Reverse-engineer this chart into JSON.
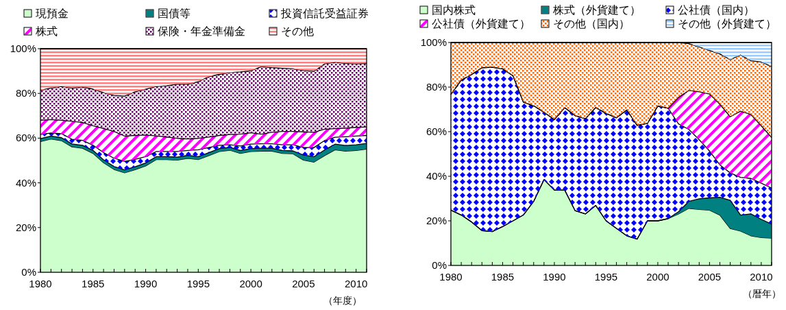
{
  "chart_data": [
    {
      "type": "area",
      "stacked": true,
      "legend": "top",
      "xlabel": "（年度）",
      "x": [
        1980,
        1981,
        1982,
        1983,
        1984,
        1985,
        1986,
        1987,
        1988,
        1989,
        1990,
        1991,
        1992,
        1993,
        1994,
        1995,
        1996,
        1997,
        1998,
        1999,
        2000,
        2001,
        2002,
        2003,
        2004,
        2005,
        2006,
        2007,
        2008,
        2009,
        2010,
        2011
      ],
      "xlim": [
        1980,
        2011
      ],
      "ylim": [
        0,
        100
      ],
      "xticks": [
        1980,
        {
          "value": 1981,
          "label": null
        },
        {
          "value": 1982,
          "label": null
        },
        {
          "value": 1983,
          "label": null
        },
        {
          "value": 1984,
          "label": null
        },
        1985,
        {
          "value": 1986,
          "label": null
        },
        {
          "value": 1987,
          "label": null
        },
        {
          "value": 1988,
          "label": null
        },
        {
          "value": 1989,
          "label": null
        },
        1990,
        {
          "value": 1991,
          "label": null
        },
        {
          "value": 1992,
          "label": null
        },
        {
          "value": 1993,
          "label": null
        },
        {
          "value": 1994,
          "label": null
        },
        1995,
        {
          "value": 1996,
          "label": null
        },
        {
          "value": 1997,
          "label": null
        },
        {
          "value": 1998,
          "label": null
        },
        {
          "value": 1999,
          "label": null
        },
        2000,
        {
          "value": 2001,
          "label": null
        },
        {
          "value": 2002,
          "label": null
        },
        {
          "value": 2003,
          "label": null
        },
        {
          "value": 2004,
          "label": null
        },
        2005,
        {
          "value": 2006,
          "label": null
        },
        {
          "value": 2007,
          "label": null
        },
        {
          "value": 2008,
          "label": null
        },
        {
          "value": 2009,
          "label": null
        },
        2010,
        {
          "value": 2011,
          "label": null
        }
      ],
      "yticks": [
        {
          "value": 0,
          "label": "0%"
        },
        {
          "value": 20,
          "label": "20%"
        },
        {
          "value": 40,
          "label": "40%"
        },
        {
          "value": 60,
          "label": "60%"
        },
        {
          "value": 80,
          "label": "80%"
        },
        {
          "value": 100,
          "label": "100%"
        }
      ],
      "series": [
        {
          "name": "現預金",
          "color": "#ccffcc",
          "values": [
            58.5,
            59.6,
            58.9,
            56.1,
            55.5,
            53.2,
            49,
            46,
            44.5,
            45.9,
            47.6,
            50.4,
            50.4,
            50.2,
            51,
            50.4,
            52.2,
            54,
            54.6,
            53.2,
            54,
            54.2,
            54.2,
            53.2,
            53,
            50.2,
            49.3,
            52.2,
            54.8,
            54.2,
            54.5,
            55.1
          ]
        },
        {
          "name": "国債等",
          "color": "#008080",
          "values": [
            1.3,
            1.3,
            1.3,
            1.3,
            1.3,
            1.3,
            1.3,
            1.3,
            1.3,
            1.3,
            1.3,
            1.3,
            1.3,
            1.3,
            1.3,
            1.3,
            1.3,
            1.3,
            1.3,
            1.3,
            1.3,
            1.3,
            1.3,
            1.3,
            1.3,
            2.2,
            2.4,
            2.5,
            2.5,
            2.5,
            2.5,
            2.5
          ]
        },
        {
          "name": "投資信託受益証券",
          "color": "#0000ff",
          "values": [
            1.8,
            1.4,
            1.8,
            2.1,
            2.2,
            2.3,
            3.2,
            3.7,
            3.8,
            3.3,
            2.8,
            2.3,
            2.3,
            2.5,
            2.2,
            3.1,
            2.3,
            1.5,
            1.1,
            2,
            2,
            2,
            2,
            2.5,
            2.7,
            3.4,
            4.1,
            4.2,
            3.1,
            3.9,
            3.9,
            3.6
          ]
        },
        {
          "name": "株式",
          "color": "#ff00ff",
          "values": [
            6.4,
            6,
            6,
            8,
            8,
            8.7,
            10.8,
            12,
            11.3,
            10.7,
            9.7,
            7,
            6.5,
            5.9,
            5.1,
            5.1,
            4.7,
            4.4,
            4.6,
            5.3,
            5.1,
            4.3,
            5.1,
            6,
            6,
            7,
            6.8,
            5.1,
            3.8,
            3.9,
            3.9,
            3.8
          ]
        },
        {
          "name": "保険・年金準備金",
          "color": "#660066",
          "values": [
            13.4,
            14.1,
            15.1,
            14.9,
            15.9,
            16.4,
            16,
            16.1,
            17.9,
            19.5,
            20.5,
            22.1,
            22.9,
            24.2,
            24.5,
            25.3,
            27,
            27.3,
            27.7,
            27.8,
            27.7,
            30.2,
            28.9,
            28.2,
            28,
            27.4,
            27.3,
            29.2,
            29.8,
            28.9,
            28.4,
            28.4
          ]
        },
        {
          "name": "その他",
          "color": "#ff8080",
          "values": [
            18.6,
            17.6,
            16.9,
            17.6,
            17.1,
            18.1,
            19.7,
            20.9,
            21.2,
            19.3,
            18.1,
            16.9,
            16.6,
            15.9,
            15.9,
            14.8,
            12.5,
            11.5,
            10.7,
            10.4,
            9.9,
            8,
            8.5,
            8.8,
            9,
            9.8,
            10.1,
            6.8,
            6,
            6.6,
            6.8,
            6.6
          ]
        }
      ]
    },
    {
      "type": "area",
      "stacked": true,
      "legend": "top",
      "xlabel": "（暦年）",
      "x": [
        1980,
        1981,
        1982,
        1983,
        1984,
        1985,
        1986,
        1987,
        1988,
        1989,
        1990,
        1991,
        1992,
        1993,
        1994,
        1995,
        1996,
        1997,
        1998,
        1999,
        2000,
        2001,
        2002,
        2003,
        2004,
        2005,
        2006,
        2007,
        2008,
        2009,
        2010,
        2011
      ],
      "xlim": [
        1980,
        2011
      ],
      "ylim": [
        0,
        100
      ],
      "xticks": [
        1980,
        {
          "value": 1981,
          "label": null
        },
        {
          "value": 1982,
          "label": null
        },
        {
          "value": 1983,
          "label": null
        },
        {
          "value": 1984,
          "label": null
        },
        1985,
        {
          "value": 1986,
          "label": null
        },
        {
          "value": 1987,
          "label": null
        },
        {
          "value": 1988,
          "label": null
        },
        {
          "value": 1989,
          "label": null
        },
        1990,
        {
          "value": 1991,
          "label": null
        },
        {
          "value": 1992,
          "label": null
        },
        {
          "value": 1993,
          "label": null
        },
        {
          "value": 1994,
          "label": null
        },
        1995,
        {
          "value": 1996,
          "label": null
        },
        {
          "value": 1997,
          "label": null
        },
        {
          "value": 1998,
          "label": null
        },
        {
          "value": 1999,
          "label": null
        },
        2000,
        {
          "value": 2001,
          "label": null
        },
        {
          "value": 2002,
          "label": null
        },
        {
          "value": 2003,
          "label": null
        },
        {
          "value": 2004,
          "label": null
        },
        2005,
        {
          "value": 2006,
          "label": null
        },
        {
          "value": 2007,
          "label": null
        },
        {
          "value": 2008,
          "label": null
        },
        {
          "value": 2009,
          "label": null
        },
        2010,
        {
          "value": 2011,
          "label": null
        }
      ],
      "yticks": [
        {
          "value": 0,
          "label": "0%"
        },
        {
          "value": 20,
          "label": "20%"
        },
        {
          "value": 40,
          "label": "40%"
        },
        {
          "value": 60,
          "label": "60%"
        },
        {
          "value": 80,
          "label": "80%"
        },
        {
          "value": 100,
          "label": "100%"
        }
      ],
      "series": [
        {
          "name": "国内株式",
          "color": "#ccffcc",
          "values": [
            24.8,
            22.6,
            19.5,
            15.6,
            15.2,
            17.4,
            20,
            22.6,
            28.7,
            38.5,
            33.8,
            33.8,
            24.6,
            23.1,
            26.9,
            20,
            16.6,
            13.3,
            11.8,
            20,
            20,
            21,
            23.1,
            25.6,
            25.1,
            24.8,
            22.6,
            16.6,
            15.4,
            13.3,
            12.5,
            12.3
          ]
        },
        {
          "name": "株式（外貨建て）",
          "color": "#008080",
          "values": [
            0,
            0,
            0,
            0,
            0,
            0,
            0,
            0,
            0,
            0,
            0,
            0,
            0,
            0,
            0,
            0,
            0,
            0,
            0,
            0,
            0,
            0,
            1,
            3.1,
            4.8,
            5.5,
            8,
            12.6,
            7.2,
            9.8,
            8.2,
            6.2
          ]
        },
        {
          "name": "公社債（国内）",
          "color": "#0000ff",
          "values": [
            51.9,
            60.5,
            66.1,
            73.1,
            73.7,
            70.8,
            65.1,
            50.7,
            42.9,
            30.2,
            31.6,
            37,
            42.6,
            42.7,
            43.9,
            48.2,
            49.6,
            56.4,
            51,
            43.7,
            51.5,
            49.5,
            39.4,
            32.3,
            26.5,
            21,
            14.5,
            12.3,
            16.9,
            15.9,
            16.2,
            16.2
          ]
        },
        {
          "name": "公社債（外貨建て）",
          "color": "#ff00ff",
          "values": [
            0,
            0,
            0,
            0,
            0,
            0,
            0,
            0,
            0,
            0,
            0,
            0,
            0,
            0,
            0,
            0,
            0,
            0,
            0,
            0,
            0,
            0,
            11.9,
            17.5,
            21.5,
            25.6,
            27.2,
            25.2,
            29.7,
            28.7,
            25.7,
            22.7
          ]
        },
        {
          "name": "その他（国内）",
          "color": "#ff6600",
          "values": [
            23.3,
            16.9,
            14.4,
            11.3,
            11.1,
            11.8,
            14.9,
            26.7,
            28.4,
            31.3,
            34.6,
            29.2,
            32.8,
            34.2,
            29.2,
            31.8,
            33.8,
            30.3,
            37.2,
            36.3,
            28.5,
            29.5,
            24.6,
            21,
            20.1,
            19.5,
            22.6,
            25.6,
            25.2,
            24.1,
            28.7,
            31.8
          ]
        },
        {
          "name": "その他（外貨建て）",
          "color": "#99ccff",
          "values": [
            0,
            0,
            0,
            0,
            0,
            0,
            0,
            0,
            0,
            0,
            0,
            0,
            0,
            0,
            0,
            0,
            0,
            0,
            0,
            0,
            0,
            0,
            0,
            0.5,
            2,
            3.6,
            5.1,
            7.7,
            5.6,
            8.2,
            8.7,
            10.8
          ]
        }
      ]
    }
  ]
}
